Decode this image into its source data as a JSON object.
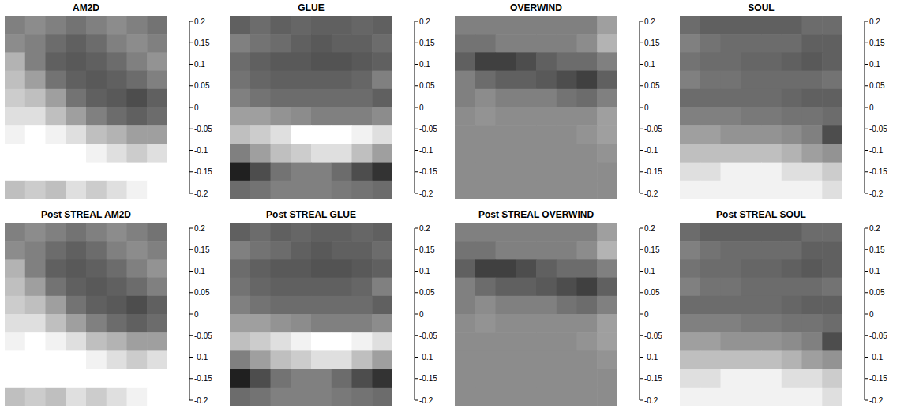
{
  "chart_data": [
    {
      "type": "heatmap",
      "title": "AM2D",
      "tick_labels": false,
      "colorbar_range": [
        -0.2,
        0.2
      ],
      "colorbar_ticks": [
        -0.2,
        -0.15,
        -0.1,
        -0.05,
        0,
        0.05,
        0.1,
        0.15,
        0.2
      ],
      "cells": [
        [
          0.0,
          0.02,
          0.0,
          -0.02,
          0.0,
          0.02,
          0.0,
          -0.02
        ],
        [
          0.02,
          0.0,
          -0.03,
          -0.05,
          -0.03,
          0.0,
          0.02,
          0.0
        ],
        [
          0.08,
          0.0,
          -0.05,
          -0.06,
          -0.05,
          -0.03,
          0.0,
          0.03
        ],
        [
          0.1,
          0.05,
          -0.02,
          -0.05,
          -0.06,
          -0.05,
          -0.03,
          0.0
        ],
        [
          0.12,
          0.1,
          0.05,
          -0.02,
          -0.05,
          -0.06,
          -0.08,
          -0.05
        ],
        [
          0.15,
          0.15,
          0.1,
          0.05,
          0.0,
          -0.03,
          -0.05,
          -0.03
        ],
        [
          0.18,
          0.2,
          0.18,
          0.15,
          0.1,
          0.08,
          0.05,
          0.05
        ],
        [
          0.2,
          0.2,
          0.2,
          0.2,
          0.18,
          0.15,
          0.12,
          0.15
        ],
        [
          0.2,
          0.2,
          0.2,
          0.2,
          0.2,
          0.2,
          0.2,
          0.2
        ],
        [
          0.1,
          0.12,
          0.1,
          0.15,
          0.12,
          0.15,
          0.18,
          0.2
        ]
      ]
    },
    {
      "type": "heatmap",
      "title": "GLUE",
      "tick_labels": false,
      "colorbar_range": [
        -0.2,
        0.2
      ],
      "colorbar_ticks": [
        -0.2,
        -0.15,
        -0.1,
        -0.05,
        0,
        0.05,
        0.1,
        0.15,
        0.2
      ],
      "cells": [
        [
          -0.05,
          -0.03,
          -0.05,
          -0.04,
          -0.05,
          -0.05,
          -0.04,
          -0.05
        ],
        [
          0.0,
          -0.02,
          -0.03,
          -0.05,
          -0.06,
          -0.05,
          -0.05,
          -0.03
        ],
        [
          -0.03,
          -0.05,
          -0.06,
          -0.06,
          -0.07,
          -0.07,
          -0.06,
          -0.05
        ],
        [
          -0.02,
          -0.04,
          -0.05,
          -0.05,
          -0.05,
          -0.05,
          -0.04,
          0.0
        ],
        [
          0.0,
          -0.02,
          -0.03,
          -0.03,
          -0.03,
          -0.03,
          -0.03,
          -0.05
        ],
        [
          0.05,
          0.05,
          0.03,
          0.02,
          0.0,
          0.0,
          0.0,
          0.02
        ],
        [
          0.1,
          0.12,
          0.15,
          0.2,
          0.2,
          0.2,
          0.18,
          0.15
        ],
        [
          0.0,
          0.05,
          0.1,
          0.12,
          0.15,
          0.15,
          0.1,
          0.05
        ],
        [
          -0.15,
          -0.08,
          -0.02,
          0.0,
          0.0,
          -0.03,
          -0.08,
          -0.12
        ],
        [
          -0.03,
          -0.02,
          0.0,
          0.0,
          0.0,
          -0.01,
          -0.02,
          -0.03
        ]
      ]
    },
    {
      "type": "heatmap",
      "title": "OVERWIND",
      "tick_labels": false,
      "colorbar_range": [
        -0.2,
        0.2
      ],
      "colorbar_ticks": [
        -0.2,
        -0.15,
        -0.1,
        -0.05,
        0,
        0.05,
        0.1,
        0.15,
        0.2
      ],
      "cells": [
        [
          0.0,
          0.0,
          0.0,
          0.0,
          0.0,
          0.0,
          0.0,
          0.05
        ],
        [
          -0.02,
          -0.02,
          0.0,
          0.0,
          0.0,
          0.0,
          0.02,
          0.08
        ],
        [
          -0.05,
          -0.1,
          -0.1,
          -0.08,
          -0.05,
          -0.03,
          -0.03,
          0.0
        ],
        [
          0.0,
          -0.03,
          -0.05,
          -0.05,
          -0.06,
          -0.08,
          -0.1,
          -0.05
        ],
        [
          0.0,
          0.02,
          0.0,
          0.0,
          0.0,
          -0.02,
          -0.03,
          0.0
        ],
        [
          0.02,
          0.03,
          0.02,
          0.02,
          0.02,
          0.02,
          0.02,
          0.05
        ],
        [
          0.02,
          0.02,
          0.02,
          0.02,
          0.02,
          0.02,
          0.03,
          0.05
        ],
        [
          0.02,
          0.02,
          0.02,
          0.02,
          0.02,
          0.02,
          0.02,
          0.03
        ],
        [
          0.02,
          0.02,
          0.02,
          0.02,
          0.02,
          0.02,
          0.02,
          0.02
        ],
        [
          0.02,
          0.02,
          0.02,
          0.02,
          0.02,
          0.02,
          0.02,
          0.02
        ]
      ]
    },
    {
      "type": "heatmap",
      "title": "SOUL",
      "tick_labels": false,
      "colorbar_range": [
        -0.2,
        0.2
      ],
      "colorbar_ticks": [
        -0.2,
        -0.15,
        -0.1,
        -0.05,
        0,
        0.05,
        0.1,
        0.15,
        0.2
      ],
      "cells": [
        [
          -0.03,
          -0.05,
          -0.05,
          -0.05,
          -0.05,
          -0.05,
          -0.03,
          -0.03
        ],
        [
          0.0,
          -0.02,
          -0.03,
          -0.03,
          -0.03,
          -0.03,
          -0.05,
          -0.05
        ],
        [
          -0.02,
          -0.03,
          -0.03,
          -0.04,
          -0.04,
          -0.05,
          -0.06,
          -0.05
        ],
        [
          0.0,
          -0.02,
          -0.02,
          -0.03,
          -0.03,
          -0.03,
          -0.03,
          -0.02
        ],
        [
          -0.03,
          -0.03,
          -0.03,
          -0.03,
          -0.03,
          -0.04,
          -0.05,
          -0.05
        ],
        [
          0.0,
          0.0,
          0.0,
          -0.01,
          -0.01,
          -0.02,
          -0.02,
          -0.03
        ],
        [
          0.05,
          0.05,
          0.03,
          0.03,
          0.03,
          0.02,
          0.0,
          -0.08
        ],
        [
          0.1,
          0.1,
          0.1,
          0.1,
          0.1,
          0.08,
          0.05,
          0.03
        ],
        [
          0.15,
          0.15,
          0.18,
          0.18,
          0.18,
          0.15,
          0.15,
          0.12
        ],
        [
          0.18,
          0.18,
          0.18,
          0.18,
          0.18,
          0.18,
          0.18,
          0.15
        ]
      ]
    },
    {
      "type": "heatmap",
      "title": "Post STREAL AM2D",
      "tick_labels": false,
      "colorbar_range": [
        -0.2,
        0.2
      ],
      "colorbar_ticks": [
        -0.2,
        -0.15,
        -0.1,
        -0.05,
        0,
        0.05,
        0.1,
        0.15,
        0.2
      ],
      "cells": [
        [
          0.0,
          0.02,
          0.0,
          -0.02,
          0.0,
          0.02,
          0.0,
          -0.02
        ],
        [
          0.02,
          0.0,
          -0.03,
          -0.05,
          -0.03,
          0.0,
          0.02,
          0.0
        ],
        [
          0.08,
          0.0,
          -0.05,
          -0.06,
          -0.05,
          -0.03,
          0.0,
          0.03
        ],
        [
          0.1,
          0.05,
          -0.02,
          -0.05,
          -0.06,
          -0.05,
          -0.03,
          0.0
        ],
        [
          0.12,
          0.1,
          0.05,
          -0.02,
          -0.05,
          -0.06,
          -0.08,
          -0.05
        ],
        [
          0.15,
          0.15,
          0.1,
          0.05,
          0.0,
          -0.03,
          -0.05,
          -0.03
        ],
        [
          0.18,
          0.2,
          0.18,
          0.15,
          0.1,
          0.08,
          0.05,
          0.05
        ],
        [
          0.2,
          0.2,
          0.2,
          0.2,
          0.18,
          0.15,
          0.12,
          0.15
        ],
        [
          0.2,
          0.2,
          0.2,
          0.2,
          0.2,
          0.2,
          0.2,
          0.2
        ],
        [
          0.1,
          0.12,
          0.1,
          0.15,
          0.12,
          0.15,
          0.18,
          0.2
        ]
      ]
    },
    {
      "type": "heatmap",
      "title": "Post STREAL GLUE",
      "tick_labels": false,
      "colorbar_range": [
        -0.2,
        0.2
      ],
      "colorbar_ticks": [
        -0.2,
        -0.15,
        -0.1,
        -0.05,
        0,
        0.05,
        0.1,
        0.15,
        0.2
      ],
      "cells": [
        [
          -0.05,
          -0.03,
          -0.05,
          -0.04,
          -0.05,
          -0.05,
          -0.04,
          -0.05
        ],
        [
          0.0,
          -0.02,
          -0.03,
          -0.05,
          -0.06,
          -0.05,
          -0.05,
          -0.03
        ],
        [
          -0.03,
          -0.05,
          -0.06,
          -0.06,
          -0.07,
          -0.07,
          -0.06,
          -0.05
        ],
        [
          -0.02,
          -0.04,
          -0.05,
          -0.05,
          -0.05,
          -0.05,
          -0.04,
          0.0
        ],
        [
          0.0,
          -0.02,
          -0.03,
          -0.03,
          -0.03,
          -0.03,
          -0.03,
          -0.05
        ],
        [
          0.05,
          0.05,
          0.03,
          0.02,
          0.0,
          0.0,
          0.0,
          0.02
        ],
        [
          0.1,
          0.12,
          0.15,
          0.18,
          0.2,
          0.2,
          0.18,
          0.15
        ],
        [
          0.0,
          0.05,
          0.1,
          0.12,
          0.15,
          0.15,
          0.1,
          0.05
        ],
        [
          -0.15,
          -0.08,
          -0.02,
          0.0,
          0.0,
          -0.03,
          -0.08,
          -0.12
        ],
        [
          -0.03,
          -0.02,
          0.0,
          0.0,
          0.0,
          -0.01,
          -0.02,
          -0.03
        ]
      ]
    },
    {
      "type": "heatmap",
      "title": "Post STREAL OVERWIND",
      "tick_labels": false,
      "colorbar_range": [
        -0.2,
        0.2
      ],
      "colorbar_ticks": [
        -0.2,
        -0.15,
        -0.1,
        -0.05,
        0,
        0.05,
        0.1,
        0.15,
        0.2
      ],
      "cells": [
        [
          0.0,
          0.0,
          0.0,
          0.0,
          0.0,
          0.0,
          0.0,
          0.05
        ],
        [
          -0.02,
          -0.02,
          0.0,
          0.0,
          0.0,
          0.0,
          0.02,
          0.08
        ],
        [
          -0.05,
          -0.1,
          -0.1,
          -0.08,
          -0.05,
          -0.03,
          -0.03,
          0.0
        ],
        [
          0.0,
          -0.03,
          -0.05,
          -0.05,
          -0.06,
          -0.08,
          -0.1,
          -0.05
        ],
        [
          0.0,
          0.02,
          0.0,
          0.0,
          0.0,
          -0.02,
          -0.03,
          0.0
        ],
        [
          0.02,
          0.03,
          0.02,
          0.02,
          0.02,
          0.02,
          0.02,
          0.05
        ],
        [
          0.02,
          0.02,
          0.02,
          0.02,
          0.02,
          0.02,
          0.03,
          0.05
        ],
        [
          0.02,
          0.02,
          0.02,
          0.02,
          0.02,
          0.02,
          0.02,
          0.03
        ],
        [
          0.02,
          0.02,
          0.02,
          0.02,
          0.02,
          0.02,
          0.02,
          0.02
        ],
        [
          0.02,
          0.02,
          0.02,
          0.02,
          0.02,
          0.02,
          0.02,
          0.02
        ]
      ]
    },
    {
      "type": "heatmap",
      "title": "Post STREAL SOUL",
      "tick_labels": false,
      "colorbar_range": [
        -0.2,
        0.2
      ],
      "colorbar_ticks": [
        -0.2,
        -0.15,
        -0.1,
        -0.05,
        0,
        0.05,
        0.1,
        0.15,
        0.2
      ],
      "cells": [
        [
          -0.03,
          -0.05,
          -0.05,
          -0.05,
          -0.05,
          -0.05,
          -0.03,
          -0.03
        ],
        [
          0.0,
          -0.02,
          -0.03,
          -0.03,
          -0.03,
          -0.03,
          -0.05,
          -0.05
        ],
        [
          -0.02,
          -0.03,
          -0.03,
          -0.04,
          -0.04,
          -0.05,
          -0.06,
          -0.05
        ],
        [
          0.0,
          -0.02,
          -0.02,
          -0.03,
          -0.03,
          -0.03,
          -0.03,
          -0.02
        ],
        [
          -0.03,
          -0.03,
          -0.03,
          -0.03,
          -0.03,
          -0.04,
          -0.05,
          -0.05
        ],
        [
          0.0,
          0.0,
          0.0,
          -0.01,
          -0.01,
          -0.02,
          -0.02,
          -0.03
        ],
        [
          0.05,
          0.05,
          0.03,
          0.03,
          0.03,
          0.02,
          0.0,
          -0.08
        ],
        [
          0.1,
          0.1,
          0.1,
          0.1,
          0.1,
          0.08,
          0.05,
          0.03
        ],
        [
          0.15,
          0.15,
          0.18,
          0.18,
          0.18,
          0.15,
          0.15,
          0.12
        ],
        [
          0.18,
          0.18,
          0.18,
          0.18,
          0.18,
          0.18,
          0.18,
          0.15
        ]
      ]
    }
  ]
}
